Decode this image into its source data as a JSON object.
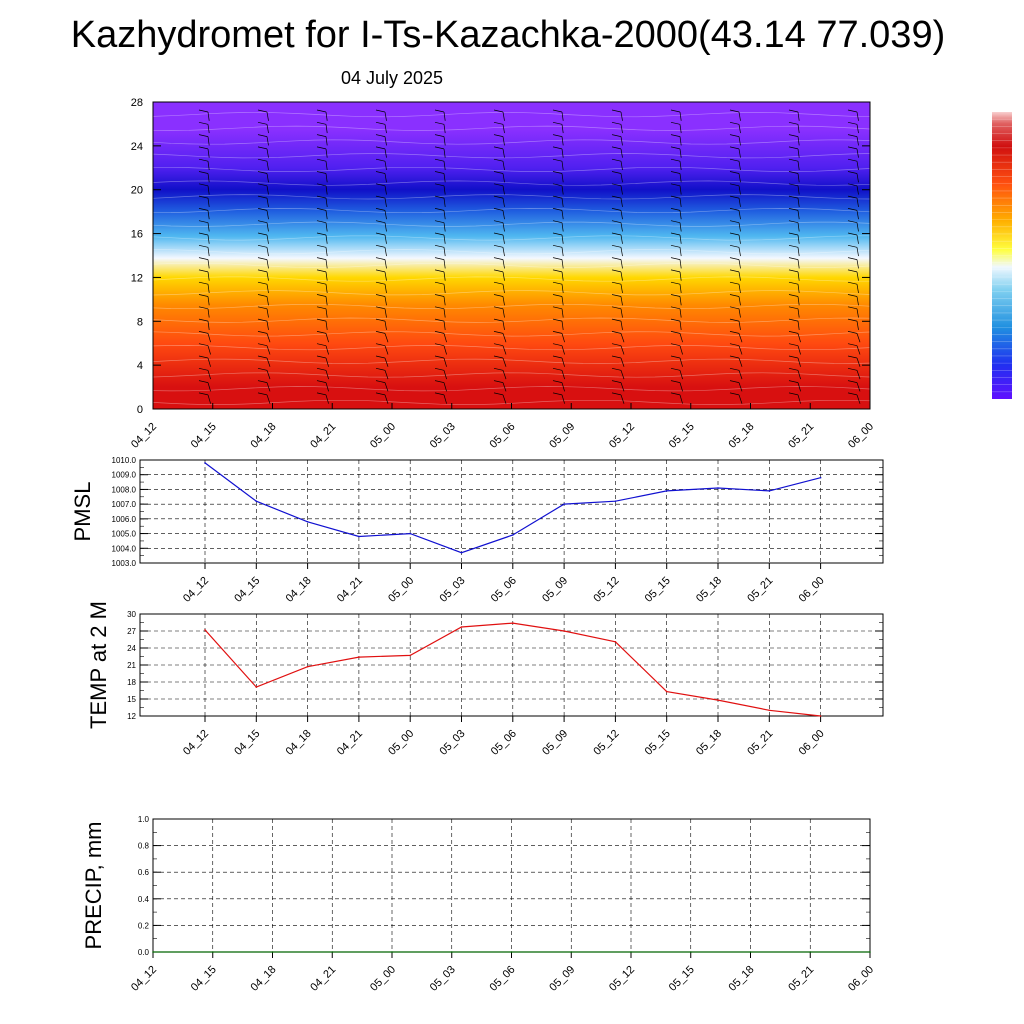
{
  "header": {
    "title": "Kazhydromet for I-Ts-Kazachka-2000(43.14 77.039)",
    "date": "04 July 2025"
  },
  "colors": {
    "pmsl_line": "#1010d0",
    "temp_line": "#e01010",
    "precip_line": "#006400",
    "palette": [
      "#ffffff",
      "#f0a0a0",
      "#d01010",
      "#ff4010",
      "#ff8000",
      "#ffc000",
      "#ffff60",
      "#e0f0ff",
      "#60c0f0",
      "#2080e0",
      "#1040d0",
      "#2000ff",
      "#8030ff"
    ]
  },
  "chart_data": [
    {
      "type": "heatmap",
      "title": "",
      "x_ticks": [
        "04_12",
        "04_15",
        "04_18",
        "04_21",
        "05_00",
        "05_03",
        "05_06",
        "05_09",
        "05_12",
        "05_15",
        "05_18",
        "05_21",
        "06_00"
      ],
      "y_ticks": [
        0,
        4,
        8,
        12,
        16,
        20,
        24,
        28
      ],
      "ylim": [
        0,
        28
      ],
      "bands": [
        {
          "from": 0,
          "to": 4,
          "color": "#d81010"
        },
        {
          "from": 4,
          "to": 8,
          "color": "#ff4a10"
        },
        {
          "from": 8,
          "to": 11,
          "color": "#ff8a00"
        },
        {
          "from": 11,
          "to": 13,
          "color": "#ffd800"
        },
        {
          "from": 13,
          "to": 14.5,
          "color": "#f4f8ff"
        },
        {
          "from": 14.5,
          "to": 17,
          "color": "#50b8f0"
        },
        {
          "from": 17,
          "to": 19,
          "color": "#2060e0"
        },
        {
          "from": 19,
          "to": 21,
          "color": "#1010c8"
        },
        {
          "from": 21,
          "to": 23,
          "color": "#5020f0"
        },
        {
          "from": 23,
          "to": 28,
          "color": "#8a30ff"
        }
      ],
      "legend": "right colorbar"
    },
    {
      "type": "line",
      "ylabel": "PMSL",
      "categories": [
        "04_12",
        "04_15",
        "04_18",
        "04_21",
        "05_00",
        "05_03",
        "05_06",
        "05_09",
        "05_12",
        "05_15",
        "05_18",
        "05_21",
        "06_00"
      ],
      "values": [
        1009.8,
        1007.2,
        1005.8,
        1004.8,
        1005.0,
        1003.7,
        1004.9,
        1007.0,
        1007.2,
        1007.9,
        1008.1,
        1007.9,
        1008.8
      ],
      "ylim": [
        1003.0,
        1010.0
      ],
      "y_ticks": [
        "1003.0",
        "1004.0",
        "1005.0",
        "1006.0",
        "1007.0",
        "1008.0",
        "1009.0",
        "1010.0"
      ],
      "grid": true
    },
    {
      "type": "line",
      "ylabel": "TEMP at 2 M",
      "categories": [
        "04_12",
        "04_15",
        "04_18",
        "04_21",
        "05_00",
        "05_03",
        "05_06",
        "05_09",
        "05_12",
        "05_15",
        "05_18",
        "05_21",
        "06_00"
      ],
      "values": [
        27.2,
        17.1,
        20.7,
        22.4,
        22.7,
        27.7,
        28.4,
        27.0,
        25.1,
        16.3,
        14.8,
        13.0,
        12.0
      ],
      "ylim": [
        12,
        30
      ],
      "y_ticks": [
        "12",
        "15",
        "18",
        "21",
        "24",
        "27",
        "30"
      ],
      "grid": true
    },
    {
      "type": "line",
      "ylabel": "PRECIP, mm",
      "categories": [
        "04_12",
        "04_15",
        "04_18",
        "04_21",
        "05_00",
        "05_03",
        "05_06",
        "05_09",
        "05_12",
        "05_15",
        "05_18",
        "05_21",
        "06_00"
      ],
      "values": [
        0,
        0,
        0,
        0,
        0,
        0,
        0,
        0,
        0,
        0,
        0,
        0,
        0
      ],
      "ylim": [
        0.0,
        1.0
      ],
      "y_ticks": [
        "0.0",
        "0.2",
        "0.4",
        "0.6",
        "0.8",
        "1.0"
      ],
      "grid": true
    }
  ]
}
